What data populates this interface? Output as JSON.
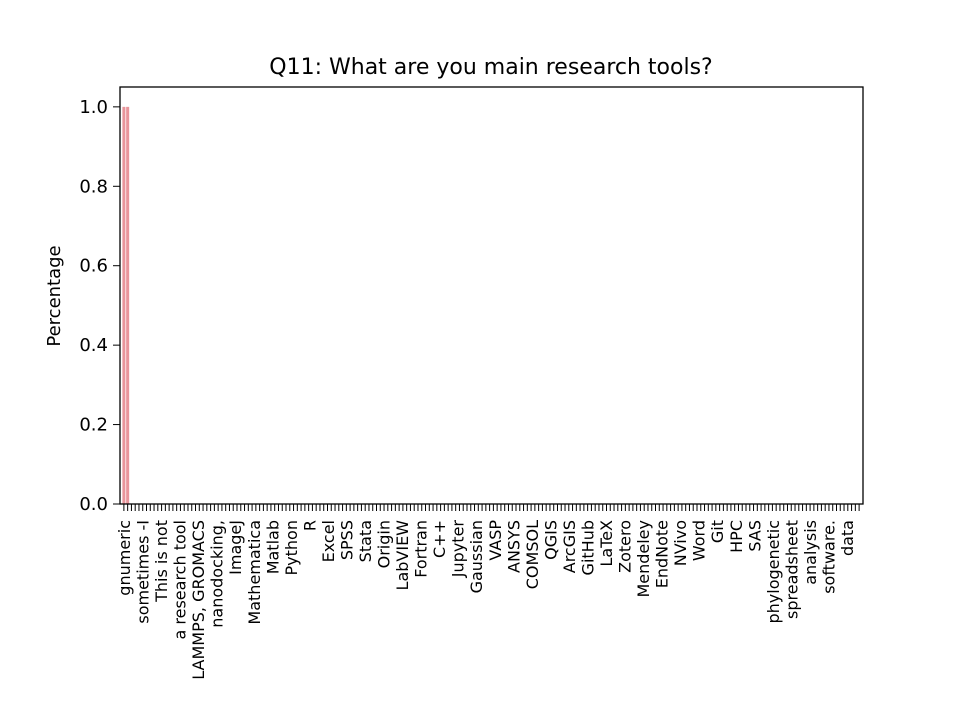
{
  "chart_data": {
    "type": "bar",
    "title": "Q11: What are you main research tools?",
    "xlabel": "",
    "ylabel": "Percentage",
    "ylim": [
      0,
      1.05
    ],
    "yticks": [
      "0.0",
      "0.2",
      "0.4",
      "0.6",
      "0.8",
      "1.0"
    ],
    "ytick_values": [
      0,
      0.2,
      0.4,
      0.6,
      0.8,
      1.0
    ],
    "bar_color": "#e8959b",
    "grid": false,
    "legend": "none",
    "values": [
      1.0,
      1.0,
      0,
      0,
      0,
      0,
      0,
      0,
      0,
      0,
      0,
      0,
      0,
      0,
      0,
      0,
      0,
      0,
      0,
      0,
      0,
      0,
      0,
      0,
      0,
      0,
      0,
      0,
      0,
      0,
      0,
      0,
      0,
      0,
      0,
      0,
      0,
      0,
      0,
      0,
      0,
      0,
      0,
      0,
      0,
      0,
      0,
      0,
      0,
      0,
      0,
      0,
      0,
      0,
      0,
      0,
      0,
      0,
      0,
      0,
      0,
      0,
      0,
      0,
      0,
      0,
      0,
      0,
      0,
      0,
      0,
      0,
      0,
      0,
      0,
      0,
      0,
      0,
      0,
      0,
      0,
      0,
      0,
      0,
      0,
      0,
      0,
      0,
      0,
      0,
      0,
      0,
      0,
      0,
      0,
      0,
      0,
      0,
      0,
      0,
      0,
      0,
      0,
      0,
      0,
      0,
      0,
      0,
      0,
      0,
      0,
      0,
      0,
      0,
      0,
      0,
      0,
      0,
      0,
      0,
      0,
      0,
      0,
      0,
      0,
      0,
      0,
      0,
      0,
      0,
      0,
      0,
      0,
      0,
      0,
      0,
      0,
      0,
      0,
      0,
      0,
      0,
      0,
      0,
      0,
      0,
      0,
      0,
      0,
      0,
      0,
      0,
      0,
      0,
      0,
      0,
      0,
      0,
      0,
      0,
      0,
      0,
      0,
      0,
      0,
      0,
      0,
      0,
      0,
      0,
      0,
      0,
      0,
      0,
      0,
      0,
      0,
      0,
      0,
      0,
      0,
      0,
      0,
      0,
      0,
      0,
      0,
      0,
      0,
      0,
      0,
      0,
      0,
      0,
      0,
      0
    ],
    "categories_readable": [
      "gnumeric",
      "sometimes -I",
      "This is not",
      "a research tool",
      "LAMMPS, GROMACS",
      "nanodocking,",
      "ImageJ",
      "Mathematica",
      "Matlab",
      "Python",
      "R",
      "Excel",
      "SPSS",
      "Stata",
      "Origin",
      "LabVIEW",
      "Fortran",
      "C++",
      "Jupyter",
      "Gaussian",
      "VASP",
      "ANSYS",
      "COMSOL",
      "QGIS",
      "ArcGIS",
      "GitHub",
      "LaTeX",
      "Zotero",
      "Mendeley",
      "EndNote",
      "NVivo",
      "Word",
      "Git",
      "HPC",
      "SAS",
      "phylogenetic",
      "spreadsheet",
      "analysis",
      "software.",
      "data"
    ]
  }
}
